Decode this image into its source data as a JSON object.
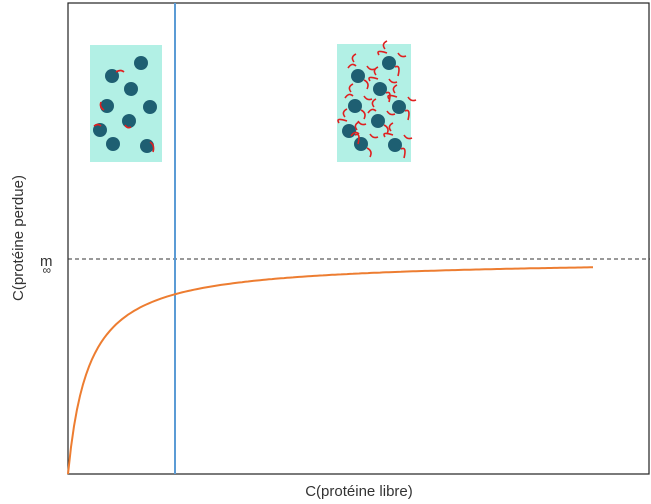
{
  "axes": {
    "x_label": "C(protéine libre)",
    "y_label": "C(protéine perdue)"
  },
  "asymptote_label": {
    "main": "m",
    "subscript": "∞"
  }
}
